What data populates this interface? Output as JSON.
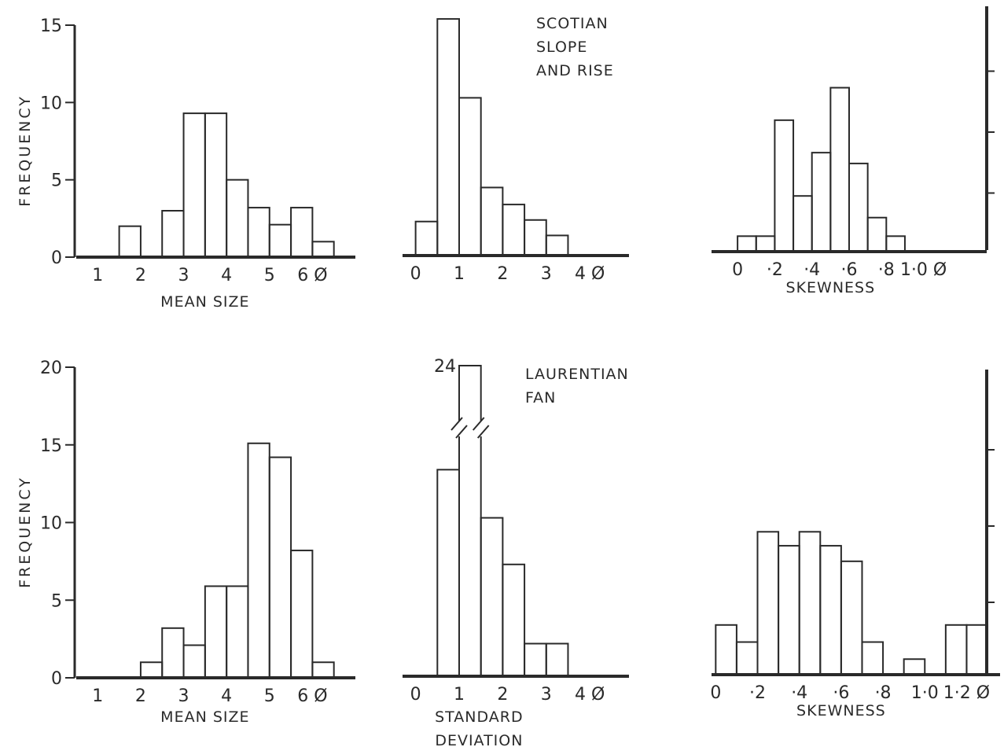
{
  "chart_data": [
    {
      "type": "bar",
      "panel": "top-mean-size",
      "xlabel": "MEAN SIZE",
      "ylabel": "FREQUENCY",
      "xlim": [
        0.5,
        7.0
      ],
      "ylim": [
        0,
        15
      ],
      "xticks": [
        {
          "v": 1,
          "label": "1"
        },
        {
          "v": 2,
          "label": "2"
        },
        {
          "v": 3,
          "label": "3"
        },
        {
          "v": 4,
          "label": "4"
        },
        {
          "v": 5,
          "label": "5"
        },
        {
          "v": 6,
          "label": "6 Ø"
        }
      ],
      "yticks": [
        {
          "v": 0,
          "label": "0"
        },
        {
          "v": 5,
          "label": "5"
        },
        {
          "v": 10,
          "label": "10"
        },
        {
          "v": 15,
          "label": "15"
        }
      ],
      "bin_edges": [
        1.5,
        2.0,
        2.5,
        3.0,
        3.5,
        4.0,
        4.5,
        5.0,
        5.5,
        6.0,
        6.5
      ],
      "values": [
        2,
        0,
        3,
        9.3,
        9.3,
        5,
        3.2,
        2.1,
        3.2,
        1
      ]
    },
    {
      "type": "bar",
      "panel": "top-std-dev",
      "xlabel": "",
      "xlim": [
        -0.3,
        4.9
      ],
      "ylim": [
        0,
        15
      ],
      "xticks": [
        {
          "v": 0,
          "label": "0"
        },
        {
          "v": 1,
          "label": "1"
        },
        {
          "v": 2,
          "label": "2"
        },
        {
          "v": 3,
          "label": "3"
        },
        {
          "v": 4,
          "label": "4 Ø"
        }
      ],
      "bin_edges": [
        0,
        0.5,
        1.0,
        1.5,
        2.0,
        2.5,
        3.0,
        3.5
      ],
      "values": [
        2.2,
        15.3,
        10.2,
        4.4,
        3.3,
        2.3,
        1.3
      ]
    },
    {
      "type": "bar",
      "panel": "top-skewness",
      "xlabel": "SKEWNESS",
      "xlim": [
        -0.14,
        1.34
      ],
      "ylim": [
        0,
        15
      ],
      "xticks": [
        {
          "v": 0,
          "label": "0"
        },
        {
          "v": 0.2,
          "label": "·2"
        },
        {
          "v": 0.4,
          "label": "·4"
        },
        {
          "v": 0.6,
          "label": "·6"
        },
        {
          "v": 0.8,
          "label": "·8"
        },
        {
          "v": 1.0,
          "label": "1·0 Ø"
        }
      ],
      "bin_edges": [
        0,
        0.1,
        0.2,
        0.3,
        0.4,
        0.5,
        0.6,
        0.7,
        0.8,
        0.9
      ],
      "values": [
        1,
        1,
        8.5,
        3.6,
        6.4,
        10.6,
        5.7,
        2.2,
        1
      ],
      "annotations": [
        "SCOTIAN",
        "SLOPE",
        "AND RISE"
      ]
    },
    {
      "type": "bar",
      "panel": "bottom-mean-size",
      "xlabel": "MEAN SIZE",
      "ylabel": "FREQUENCY",
      "xlim": [
        0.5,
        7.0
      ],
      "ylim": [
        0,
        20
      ],
      "xticks": [
        {
          "v": 1,
          "label": "1"
        },
        {
          "v": 2,
          "label": "2"
        },
        {
          "v": 3,
          "label": "3"
        },
        {
          "v": 4,
          "label": "4"
        },
        {
          "v": 5,
          "label": "5"
        },
        {
          "v": 6,
          "label": "6 Ø"
        }
      ],
      "yticks": [
        {
          "v": 0,
          "label": "0"
        },
        {
          "v": 5,
          "label": "5"
        },
        {
          "v": 10,
          "label": "10"
        },
        {
          "v": 15,
          "label": "15"
        },
        {
          "v": 20,
          "label": "20"
        }
      ],
      "bin_edges": [
        2.0,
        2.5,
        3.0,
        3.5,
        4.0,
        4.5,
        5.0,
        5.5,
        6.0,
        6.5
      ],
      "values": [
        1,
        3.2,
        2.1,
        5.9,
        5.9,
        15.1,
        14.2,
        8.2,
        1
      ]
    },
    {
      "type": "bar",
      "panel": "bottom-std-dev",
      "xlabel": "STANDARD DEVIATION",
      "xlim": [
        -0.3,
        4.9
      ],
      "ylim": [
        0,
        20
      ],
      "xticks": [
        {
          "v": 0,
          "label": "0"
        },
        {
          "v": 1,
          "label": "1"
        },
        {
          "v": 2,
          "label": "2"
        },
        {
          "v": 3,
          "label": "3"
        },
        {
          "v": 4,
          "label": "4 Ø"
        }
      ],
      "bin_edges": [
        0.5,
        1.0,
        1.5,
        2.0,
        2.5,
        3.0,
        3.5
      ],
      "values": [
        13.3,
        24,
        10.2,
        7.2,
        2.1,
        2.1
      ],
      "broken_bar": {
        "index": 1,
        "label": "24"
      },
      "annotations": [
        "LAURENTIAN",
        "FAN"
      ]
    },
    {
      "type": "bar",
      "panel": "bottom-skewness",
      "xlabel": "SKEWNESS",
      "xlim": [
        -0.02,
        1.36
      ],
      "ylim": [
        0,
        20
      ],
      "xticks": [
        {
          "v": 0,
          "label": "0"
        },
        {
          "v": 0.2,
          "label": "·2"
        },
        {
          "v": 0.4,
          "label": "·4"
        },
        {
          "v": 0.6,
          "label": "·6"
        },
        {
          "v": 0.8,
          "label": "·8"
        },
        {
          "v": 1.0,
          "label": "1·0"
        },
        {
          "v": 1.2,
          "label": "1·2 Ø"
        }
      ],
      "bin_edges": [
        0,
        0.1,
        0.2,
        0.3,
        0.4,
        0.5,
        0.6,
        0.7,
        0.8,
        0.9,
        1.0,
        1.1,
        1.2,
        1.3
      ],
      "values": [
        3.2,
        2.1,
        9.2,
        8.3,
        9.2,
        8.3,
        7.3,
        2.1,
        0,
        1,
        0,
        3.2,
        3.2
      ]
    }
  ]
}
